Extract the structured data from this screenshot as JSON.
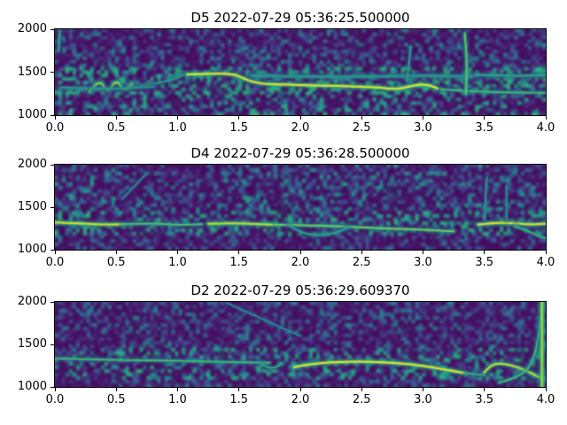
{
  "chart_data": [
    {
      "type": "heatmap",
      "subtype": "spectrogram",
      "title": "D5 2022-07-29 05:36:25.500000",
      "colormap": "viridis",
      "xlim": [
        0.0,
        4.0
      ],
      "ylim": [
        1000,
        2000
      ],
      "xticks": [
        0.0,
        0.5,
        1.0,
        1.5,
        2.0,
        2.5,
        3.0,
        3.5,
        4.0
      ],
      "xticklabels": [
        "0.0",
        "0.5",
        "1.0",
        "1.5",
        "2.0",
        "2.5",
        "3.0",
        "3.5",
        "4.0"
      ],
      "yticks": [
        1000,
        1500,
        2000
      ],
      "yticklabels": [
        "1000",
        "1500",
        "2000"
      ],
      "legend": "none",
      "grid": false,
      "texture": {
        "seed": 11,
        "band": [
          1230,
          1560
        ],
        "inBand": 2.6,
        "below": 1.3,
        "above": 0.9,
        "amp": 0.5,
        "blobs": 90,
        "blobFrac": 0.7
      },
      "features": {
        "ridges": [
          {
            "name": "left-edge-streak",
            "points": [
              [
                0.03,
                1750
              ],
              [
                0.04,
                1980
              ]
            ],
            "intensity": 0.45,
            "width": 2
          },
          {
            "name": "early-squiggle",
            "points": [
              [
                0.28,
                1270
              ],
              [
                0.36,
                1430
              ],
              [
                0.43,
                1250
              ],
              [
                0.5,
                1420
              ],
              [
                0.56,
                1280
              ],
              [
                0.63,
                1360
              ]
            ],
            "intensity": 0.8,
            "width": 2
          },
          {
            "name": "lead-in",
            "points": [
              [
                0.7,
                1350
              ],
              [
                0.9,
                1380
              ],
              [
                1.05,
                1470
              ]
            ],
            "intensity": 0.35,
            "width": 2
          },
          {
            "name": "main-whistle",
            "points": [
              [
                1.08,
                1475
              ],
              [
                1.3,
                1485
              ],
              [
                1.45,
                1480
              ],
              [
                1.52,
                1440
              ],
              [
                1.6,
                1390
              ],
              [
                1.72,
                1360
              ],
              [
                1.9,
                1355
              ],
              [
                2.1,
                1345
              ],
              [
                2.3,
                1340
              ],
              [
                2.5,
                1330
              ],
              [
                2.65,
                1320
              ],
              [
                2.78,
                1300
              ],
              [
                2.88,
                1330
              ],
              [
                2.98,
                1360
              ],
              [
                3.06,
                1345
              ],
              [
                3.12,
                1310
              ]
            ],
            "intensity": 1.0,
            "width": 2.2
          },
          {
            "name": "tail-band",
            "points": [
              [
                3.15,
                1300
              ],
              [
                3.4,
                1275
              ],
              [
                3.7,
                1265
              ],
              [
                4.0,
                1260
              ]
            ],
            "intensity": 0.55,
            "width": 2
          },
          {
            "name": "upper-band-right",
            "points": [
              [
                3.42,
                1470
              ],
              [
                3.7,
                1455
              ],
              [
                4.0,
                1465
              ]
            ],
            "intensity": 0.4,
            "width": 2.5
          },
          {
            "name": "upper-sideband",
            "points": [
              [
                1.6,
                1460
              ],
              [
                2.0,
                1450
              ],
              [
                2.5,
                1445
              ],
              [
                3.0,
                1460
              ],
              [
                3.4,
                1450
              ]
            ],
            "intensity": 0.3,
            "width": 3
          },
          {
            "name": "lower-left-band",
            "points": [
              [
                0.05,
                1320
              ],
              [
                0.4,
                1300
              ],
              [
                0.8,
                1330
              ]
            ],
            "intensity": 0.3,
            "width": 2.5
          },
          {
            "name": "vertical-streak-1",
            "points": [
              [
                2.87,
                1400
              ],
              [
                2.9,
                1800
              ]
            ],
            "intensity": 0.4,
            "width": 1.8
          },
          {
            "name": "vertical-streak-2",
            "points": [
              [
                3.35,
                1250
              ],
              [
                3.36,
                1600
              ],
              [
                3.34,
                1950
              ]
            ],
            "intensity": 0.65,
            "width": 2.2
          }
        ]
      }
    },
    {
      "type": "heatmap",
      "subtype": "spectrogram",
      "title": "D4 2022-07-29 05:36:28.500000",
      "colormap": "viridis",
      "xlim": [
        0.0,
        4.0
      ],
      "ylim": [
        1000,
        2000
      ],
      "xticks": [
        0.0,
        0.5,
        1.0,
        1.5,
        2.0,
        2.5,
        3.0,
        3.5,
        4.0
      ],
      "xticklabels": [
        "0.0",
        "0.5",
        "1.0",
        "1.5",
        "2.0",
        "2.5",
        "3.0",
        "3.5",
        "4.0"
      ],
      "yticks": [
        1000,
        1500,
        2000
      ],
      "yticklabels": [
        "1000",
        "1500",
        "2000"
      ],
      "legend": "none",
      "grid": false,
      "texture": {
        "seed": 22,
        "band": [
          1150,
          1450
        ],
        "inBand": 1.6,
        "below": 0.8,
        "above": 1.05,
        "amp": 0.5,
        "blobs": 70,
        "blobFrac": 0.55
      },
      "features": {
        "ridges": [
          {
            "name": "bright-segment-1",
            "points": [
              [
                0.0,
                1320
              ],
              [
                0.2,
                1310
              ],
              [
                0.4,
                1295
              ],
              [
                0.55,
                1300
              ]
            ],
            "intensity": 0.95,
            "width": 2.2
          },
          {
            "name": "mid-teal",
            "points": [
              [
                0.55,
                1300
              ],
              [
                0.8,
                1310
              ],
              [
                1.0,
                1290
              ],
              [
                1.2,
                1300
              ]
            ],
            "intensity": 0.6,
            "width": 2
          },
          {
            "name": "bright-segment-2",
            "points": [
              [
                1.25,
                1305
              ],
              [
                1.45,
                1315
              ],
              [
                1.65,
                1300
              ],
              [
                1.8,
                1295
              ]
            ],
            "intensity": 0.9,
            "width": 2.2
          },
          {
            "name": "slow-decline",
            "points": [
              [
                1.8,
                1295
              ],
              [
                2.1,
                1285
              ],
              [
                2.4,
                1270
              ],
              [
                2.7,
                1250
              ],
              [
                3.0,
                1235
              ],
              [
                3.25,
                1215
              ]
            ],
            "intensity": 0.72,
            "width": 2
          },
          {
            "name": "under-loop",
            "points": [
              [
                1.9,
                1290
              ],
              [
                2.0,
                1200
              ],
              [
                2.15,
                1160
              ],
              [
                2.3,
                1200
              ],
              [
                2.4,
                1270
              ]
            ],
            "intensity": 0.4,
            "width": 2
          },
          {
            "name": "bright-segment-3",
            "points": [
              [
                3.45,
                1295
              ],
              [
                3.6,
                1320
              ],
              [
                3.75,
                1310
              ],
              [
                3.88,
                1295
              ],
              [
                4.0,
                1305
              ]
            ],
            "intensity": 0.95,
            "width": 2.4
          },
          {
            "name": "end-dip",
            "points": [
              [
                3.75,
                1280
              ],
              [
                3.9,
                1190
              ],
              [
                4.0,
                1130
              ]
            ],
            "intensity": 0.5,
            "width": 2
          },
          {
            "name": "vertical-streak-1",
            "points": [
              [
                3.5,
                1350
              ],
              [
                3.52,
                1850
              ]
            ],
            "intensity": 0.35,
            "width": 1.8
          },
          {
            "name": "vertical-streak-2",
            "points": [
              [
                3.68,
                1350
              ],
              [
                3.68,
                1750
              ]
            ],
            "intensity": 0.3,
            "width": 1.8
          },
          {
            "name": "left-diag",
            "points": [
              [
                0.55,
                1600
              ],
              [
                0.75,
                1900
              ]
            ],
            "intensity": 0.28,
            "width": 1.6
          }
        ]
      }
    },
    {
      "type": "heatmap",
      "subtype": "spectrogram",
      "title": "D2 2022-07-29 05:36:29.609370",
      "colormap": "viridis",
      "xlim": [
        0.0,
        4.0
      ],
      "ylim": [
        1000,
        2000
      ],
      "xticks": [
        0.0,
        0.5,
        1.0,
        1.5,
        2.0,
        2.5,
        3.0,
        3.5,
        4.0
      ],
      "xticklabels": [
        "0.0",
        "0.5",
        "1.0",
        "1.5",
        "2.0",
        "2.5",
        "3.0",
        "3.5",
        "4.0"
      ],
      "yticks": [
        1000,
        1500,
        2000
      ],
      "yticklabels": [
        "1000",
        "1500",
        "2000"
      ],
      "legend": "none",
      "grid": false,
      "texture": {
        "seed": 33,
        "band": [
          1100,
          1450
        ],
        "inBand": 1.6,
        "below": 0.9,
        "above": 0.95,
        "amp": 0.45,
        "blobs": 60,
        "blobFrac": 0.5
      },
      "features": {
        "ridges": [
          {
            "name": "flat-ridge",
            "points": [
              [
                0.0,
                1335
              ],
              [
                0.3,
                1325
              ],
              [
                0.6,
                1315
              ],
              [
                0.9,
                1310
              ],
              [
                1.2,
                1300
              ],
              [
                1.5,
                1290
              ],
              [
                1.75,
                1285
              ]
            ],
            "intensity": 0.55,
            "width": 2
          },
          {
            "name": "small-curl",
            "points": [
              [
                1.68,
                1270
              ],
              [
                1.74,
                1215
              ],
              [
                1.82,
                1240
              ],
              [
                1.85,
                1280
              ]
            ],
            "intensity": 0.45,
            "width": 1.8
          },
          {
            "name": "faint-diagonal",
            "points": [
              [
                1.4,
                1990
              ],
              [
                1.7,
                1790
              ],
              [
                2.0,
                1600
              ]
            ],
            "intensity": 0.3,
            "width": 1.5
          },
          {
            "name": "bright-arc",
            "points": [
              [
                1.95,
                1235
              ],
              [
                2.1,
                1275
              ],
              [
                2.3,
                1295
              ],
              [
                2.55,
                1300
              ],
              [
                2.8,
                1280
              ],
              [
                3.0,
                1250
              ],
              [
                3.2,
                1200
              ],
              [
                3.35,
                1160
              ]
            ],
            "intensity": 1.0,
            "width": 2.2
          },
          {
            "name": "arc-tail",
            "points": [
              [
                3.35,
                1160
              ],
              [
                3.5,
                1140
              ]
            ],
            "intensity": 0.45,
            "width": 2
          },
          {
            "name": "end-hook",
            "points": [
              [
                3.5,
                1170
              ],
              [
                3.55,
                1255
              ],
              [
                3.62,
                1280
              ],
              [
                3.72,
                1255
              ],
              [
                3.82,
                1205
              ],
              [
                3.9,
                1150
              ],
              [
                3.95,
                1110
              ]
            ],
            "intensity": 0.9,
            "width": 2.2
          },
          {
            "name": "rising-sweep",
            "points": [
              [
                3.62,
                1050
              ],
              [
                3.8,
                1120
              ],
              [
                3.9,
                1300
              ],
              [
                3.95,
                1650
              ],
              [
                3.97,
                1990
              ]
            ],
            "intensity": 0.55,
            "width": 2
          },
          {
            "name": "right-edge-vertical",
            "points": [
              [
                3.97,
                1000
              ],
              [
                3.97,
                2000
              ]
            ],
            "intensity": 0.8,
            "width": 3
          }
        ]
      }
    }
  ]
}
